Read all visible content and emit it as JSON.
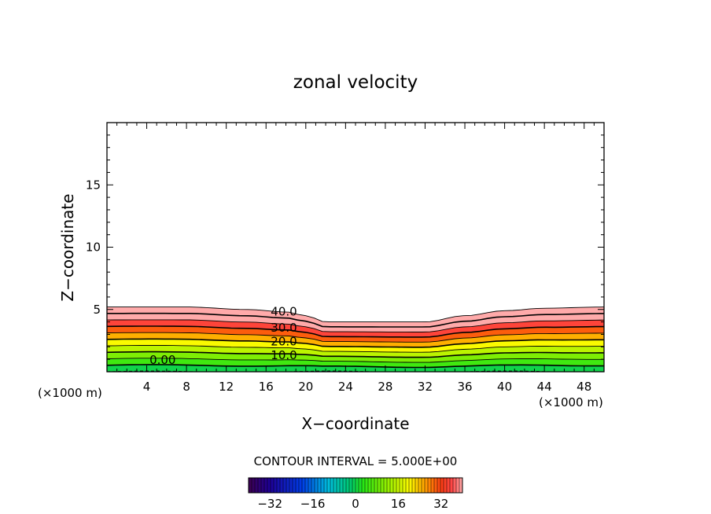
{
  "chart_data": {
    "type": "contour",
    "title": "zonal velocity",
    "xlabel": "X−coordinate",
    "ylabel": "Z−coordinate",
    "x_unit_left": "(×1000 m)",
    "x_unit_right": "(×1000 m)",
    "xlim": [
      0,
      50
    ],
    "ylim": [
      0,
      20
    ],
    "x_ticks": [
      "4",
      "8",
      "12",
      "16",
      "20",
      "24",
      "28",
      "32",
      "36",
      "40",
      "44",
      "48"
    ],
    "y_ticks": [
      "5",
      "10",
      "15"
    ],
    "contour_interval_text": "CONTOUR INTERVAL = 5.000E+00",
    "contour_interval": 5,
    "contour_labels": [
      {
        "text": "40.0",
        "x": 17.8,
        "y": 4.9
      },
      {
        "text": "30.0",
        "x": 17.8,
        "y": 3.6
      },
      {
        "text": "20.0",
        "x": 17.8,
        "y": 2.5
      },
      {
        "text": "10.0",
        "x": 17.8,
        "y": 1.4
      },
      {
        "text": "0.00",
        "x": 5.6,
        "y": 1.0
      }
    ],
    "colorbar": {
      "min": -40,
      "max": 40,
      "ticks": [
        "−32",
        "−16",
        "0",
        "16",
        "32"
      ]
    },
    "field_top_height": {
      "x": [
        0,
        8,
        14,
        18,
        20,
        22,
        26,
        32,
        36,
        40,
        44,
        50
      ],
      "z": [
        5.2,
        5.2,
        5.0,
        4.8,
        4.5,
        4.0,
        4.0,
        4.0,
        4.5,
        4.9,
        5.1,
        5.2
      ]
    },
    "colors": {
      "frame": "#000000",
      "background": "#ffffff"
    }
  }
}
